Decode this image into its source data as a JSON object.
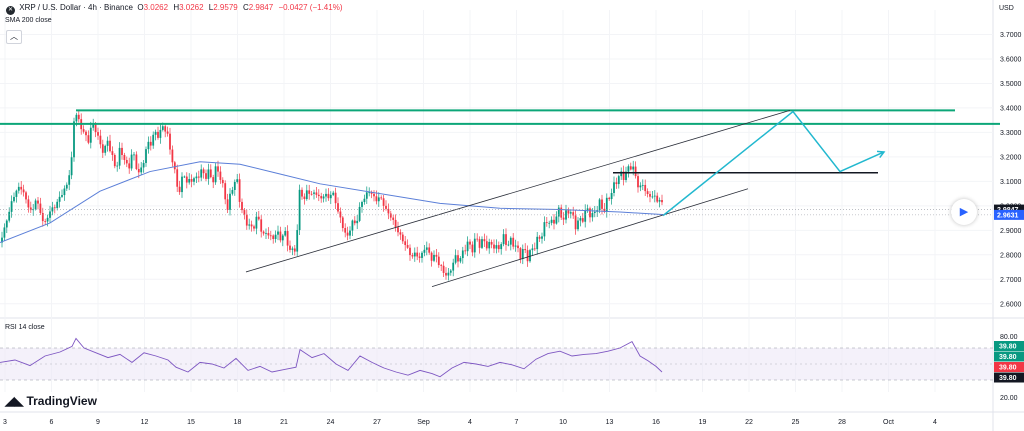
{
  "header": {
    "symbol_icon": "xrp-logo-icon",
    "title": "XRP / U.S. Dollar · 4h · Binance",
    "open_label": "O",
    "open": "3.0262",
    "high_label": "H",
    "high": "3.0262",
    "low_label": "L",
    "low": "2.9579",
    "close_label": "C",
    "close": "2.9847",
    "change": "−0.0427 (−1.41%)"
  },
  "indicators": {
    "sma": "SMA 200 close",
    "rsi": "RSI 14 close"
  },
  "currency": "USD",
  "brand": "TradingView",
  "colors": {
    "up": "#089981",
    "down": "#f23645",
    "sma": "#5b7fd8",
    "level": "#0ca678",
    "projection": "#22b8cf",
    "rsi": "#7e57c2"
  },
  "chart_data": {
    "type": "candlestick",
    "price_axis": {
      "ticks": [
        2.6,
        2.7,
        2.8,
        2.9,
        3.0,
        3.1,
        3.2,
        3.3,
        3.4,
        3.5,
        3.6,
        3.7
      ],
      "tick_labels": [
        "2.6000",
        "2.7000",
        "2.8000",
        "2.9000",
        "3.0000",
        "3.1000",
        "3.2000",
        "3.3000",
        "3.4000",
        "3.5000",
        "3.6000",
        "3.7000"
      ],
      "range": [
        2.55,
        3.8
      ]
    },
    "time_axis": {
      "labels": [
        "3",
        "6",
        "9",
        "12",
        "15",
        "18",
        "21",
        "24",
        "27",
        "Sep",
        "4",
        "7",
        "10",
        "13",
        "16",
        "19",
        "22",
        "25",
        "28",
        "Oct",
        "4"
      ]
    },
    "price_labels": [
      {
        "value": 2.9847,
        "text": "2.9847",
        "color": "#131722"
      },
      {
        "value": 2.9631,
        "text": "2.9631",
        "color": "#2962ff"
      }
    ],
    "price_path": [
      [
        0,
        2.85
      ],
      [
        4,
        2.9
      ],
      [
        8,
        2.96
      ],
      [
        12,
        3.02
      ],
      [
        16,
        3.06
      ],
      [
        20,
        3.08
      ],
      [
        24,
        3.05
      ],
      [
        28,
        3.0
      ],
      [
        32,
        2.97
      ],
      [
        36,
        3.03
      ],
      [
        40,
        2.98
      ],
      [
        44,
        2.92
      ],
      [
        48,
        2.96
      ],
      [
        52,
        2.99
      ],
      [
        56,
        3.0
      ],
      [
        60,
        3.04
      ],
      [
        64,
        3.06
      ],
      [
        68,
        3.1
      ],
      [
        72,
        3.2
      ],
      [
        74,
        3.35
      ],
      [
        76,
        3.38
      ],
      [
        80,
        3.33
      ],
      [
        84,
        3.3
      ],
      [
        88,
        3.26
      ],
      [
        92,
        3.34
      ],
      [
        96,
        3.31
      ],
      [
        100,
        3.25
      ],
      [
        104,
        3.22
      ],
      [
        108,
        3.27
      ],
      [
        112,
        3.2
      ],
      [
        116,
        3.15
      ],
      [
        120,
        3.23
      ],
      [
        124,
        3.2
      ],
      [
        128,
        3.14
      ],
      [
        132,
        3.22
      ],
      [
        136,
        3.17
      ],
      [
        140,
        3.12
      ],
      [
        144,
        3.2
      ],
      [
        148,
        3.25
      ],
      [
        152,
        3.27
      ],
      [
        156,
        3.3
      ],
      [
        160,
        3.29
      ],
      [
        164,
        3.34
      ],
      [
        168,
        3.27
      ],
      [
        172,
        3.2
      ],
      [
        176,
        3.1
      ],
      [
        180,
        3.06
      ],
      [
        184,
        3.14
      ],
      [
        188,
        3.08
      ],
      [
        192,
        3.12
      ],
      [
        196,
        3.1
      ],
      [
        200,
        3.15
      ],
      [
        204,
        3.12
      ],
      [
        208,
        3.14
      ],
      [
        212,
        3.1
      ],
      [
        216,
        3.15
      ],
      [
        220,
        3.13
      ],
      [
        224,
        3.05
      ],
      [
        228,
        2.99
      ],
      [
        232,
        3.07
      ],
      [
        236,
        3.12
      ],
      [
        240,
        3.02
      ],
      [
        244,
        2.95
      ],
      [
        248,
        2.93
      ],
      [
        252,
        2.9
      ],
      [
        256,
        2.95
      ],
      [
        260,
        2.93
      ],
      [
        264,
        2.87
      ],
      [
        268,
        2.9
      ],
      [
        272,
        2.85
      ],
      [
        276,
        2.9
      ],
      [
        280,
        2.86
      ],
      [
        284,
        2.9
      ],
      [
        288,
        2.84
      ],
      [
        292,
        2.81
      ],
      [
        296,
        2.83
      ],
      [
        298,
        2.95
      ],
      [
        300,
        3.08
      ],
      [
        304,
        3.02
      ],
      [
        308,
        3.07
      ],
      [
        312,
        3.04
      ],
      [
        316,
        3.06
      ],
      [
        320,
        3.02
      ],
      [
        324,
        3.05
      ],
      [
        328,
        3.03
      ],
      [
        332,
        3.06
      ],
      [
        336,
        3.01
      ],
      [
        340,
        2.95
      ],
      [
        344,
        2.9
      ],
      [
        348,
        2.87
      ],
      [
        352,
        2.94
      ],
      [
        356,
        2.92
      ],
      [
        360,
        3.0
      ],
      [
        364,
        3.03
      ],
      [
        368,
        3.06
      ],
      [
        372,
        3.05
      ],
      [
        376,
        3.02
      ],
      [
        380,
        3.04
      ],
      [
        384,
        3.0
      ],
      [
        388,
        2.97
      ],
      [
        392,
        2.95
      ],
      [
        396,
        2.91
      ],
      [
        400,
        2.88
      ],
      [
        404,
        2.85
      ],
      [
        408,
        2.82
      ],
      [
        412,
        2.79
      ],
      [
        416,
        2.81
      ],
      [
        420,
        2.78
      ],
      [
        424,
        2.83
      ],
      [
        428,
        2.82
      ],
      [
        432,
        2.78
      ],
      [
        436,
        2.8
      ],
      [
        440,
        2.75
      ],
      [
        444,
        2.73
      ],
      [
        448,
        2.71
      ],
      [
        452,
        2.76
      ],
      [
        456,
        2.79
      ],
      [
        460,
        2.78
      ],
      [
        464,
        2.82
      ],
      [
        468,
        2.85
      ],
      [
        472,
        2.82
      ],
      [
        476,
        2.87
      ],
      [
        480,
        2.84
      ],
      [
        484,
        2.86
      ],
      [
        488,
        2.83
      ],
      [
        492,
        2.85
      ],
      [
        496,
        2.82
      ],
      [
        500,
        2.84
      ],
      [
        504,
        2.87
      ],
      [
        508,
        2.84
      ],
      [
        512,
        2.86
      ],
      [
        516,
        2.83
      ],
      [
        520,
        2.8
      ],
      [
        524,
        2.82
      ],
      [
        528,
        2.79
      ],
      [
        532,
        2.82
      ],
      [
        536,
        2.85
      ],
      [
        540,
        2.87
      ],
      [
        544,
        2.91
      ],
      [
        548,
        2.95
      ],
      [
        552,
        2.92
      ],
      [
        556,
        2.96
      ],
      [
        560,
        2.98
      ],
      [
        564,
        2.94
      ],
      [
        568,
        2.99
      ],
      [
        572,
        2.96
      ],
      [
        576,
        2.92
      ],
      [
        580,
        2.94
      ],
      [
        584,
        2.96
      ],
      [
        588,
        2.99
      ],
      [
        592,
        2.95
      ],
      [
        596,
        2.99
      ],
      [
        600,
        3.01
      ],
      [
        604,
        2.98
      ],
      [
        608,
        3.03
      ],
      [
        612,
        3.06
      ],
      [
        616,
        3.1
      ],
      [
        620,
        3.13
      ],
      [
        624,
        3.12
      ],
      [
        628,
        3.15
      ],
      [
        632,
        3.17
      ],
      [
        636,
        3.11
      ],
      [
        640,
        3.07
      ],
      [
        644,
        3.09
      ],
      [
        648,
        3.03
      ],
      [
        652,
        3.05
      ],
      [
        656,
        3.02
      ],
      [
        660,
        3.03
      ],
      [
        663,
        2.99
      ]
    ],
    "sma_path": [
      [
        0,
        2.85
      ],
      [
        50,
        2.93
      ],
      [
        100,
        3.06
      ],
      [
        150,
        3.14
      ],
      [
        200,
        3.18
      ],
      [
        240,
        3.17
      ],
      [
        280,
        3.13
      ],
      [
        320,
        3.09
      ],
      [
        380,
        3.05
      ],
      [
        440,
        3.01
      ],
      [
        500,
        2.99
      ],
      [
        560,
        2.985
      ],
      [
        620,
        2.975
      ],
      [
        664,
        2.964
      ]
    ],
    "lines": [
      {
        "kind": "resistance",
        "y1": 3.39,
        "y2": 3.39,
        "x1": 76,
        "x2": 955
      },
      {
        "kind": "resistance",
        "y1": 3.335,
        "y2": 3.335,
        "x1": 0,
        "x2": 1000
      },
      {
        "kind": "level",
        "y1": 3.135,
        "y2": 3.135,
        "x1": 613,
        "x2": 878
      },
      {
        "kind": "channel",
        "x1": 246,
        "y1": 2.73,
        "x2": 790,
        "y2": 3.39
      },
      {
        "kind": "channel",
        "x1": 432,
        "y1": 2.67,
        "x2": 748,
        "y2": 3.07
      }
    ],
    "projection": [
      [
        663,
        2.96
      ],
      [
        793,
        3.385
      ],
      [
        840,
        3.14
      ],
      [
        884,
        3.22
      ]
    ],
    "rsi": {
      "label": "RSI 14 close",
      "band": [
        30,
        70
      ],
      "axis_labels": [
        "80.00",
        "20.00"
      ],
      "range": [
        15,
        85
      ],
      "value_labels": [
        "39.80",
        "39.80",
        "39.80",
        "39.80"
      ],
      "path": [
        [
          0,
          52
        ],
        [
          15,
          55
        ],
        [
          30,
          48
        ],
        [
          45,
          60
        ],
        [
          60,
          65
        ],
        [
          72,
          72
        ],
        [
          76,
          82
        ],
        [
          84,
          70
        ],
        [
          96,
          64
        ],
        [
          108,
          58
        ],
        [
          120,
          62
        ],
        [
          132,
          52
        ],
        [
          144,
          64
        ],
        [
          156,
          60
        ],
        [
          168,
          55
        ],
        [
          176,
          46
        ],
        [
          188,
          40
        ],
        [
          200,
          52
        ],
        [
          212,
          50
        ],
        [
          224,
          45
        ],
        [
          236,
          57
        ],
        [
          248,
          42
        ],
        [
          260,
          47
        ],
        [
          272,
          40
        ],
        [
          284,
          43
        ],
        [
          296,
          46
        ],
        [
          300,
          68
        ],
        [
          312,
          58
        ],
        [
          324,
          63
        ],
        [
          336,
          50
        ],
        [
          348,
          42
        ],
        [
          360,
          60
        ],
        [
          372,
          52
        ],
        [
          384,
          45
        ],
        [
          396,
          40
        ],
        [
          408,
          36
        ],
        [
          420,
          42
        ],
        [
          432,
          38
        ],
        [
          440,
          34
        ],
        [
          452,
          45
        ],
        [
          464,
          52
        ],
        [
          476,
          50
        ],
        [
          488,
          47
        ],
        [
          500,
          52
        ],
        [
          512,
          49
        ],
        [
          524,
          44
        ],
        [
          536,
          56
        ],
        [
          548,
          63
        ],
        [
          560,
          66
        ],
        [
          572,
          60
        ],
        [
          584,
          62
        ],
        [
          596,
          63
        ],
        [
          608,
          66
        ],
        [
          620,
          70
        ],
        [
          632,
          78
        ],
        [
          640,
          60
        ],
        [
          648,
          54
        ],
        [
          656,
          47
        ],
        [
          662,
          40
        ]
      ]
    }
  }
}
